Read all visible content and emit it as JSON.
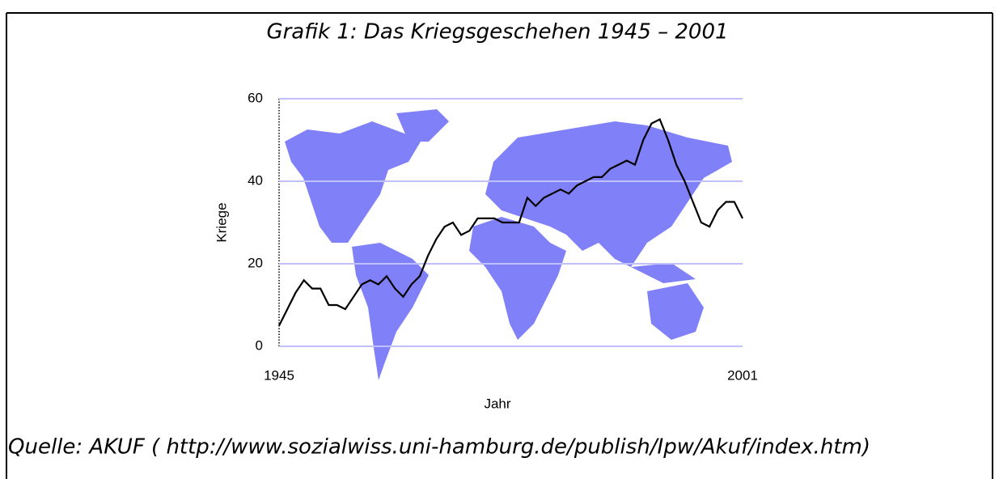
{
  "chart_data": {
    "type": "line",
    "title": "Grafik 1: Das Kriegsgeschehen 1945 – 2001",
    "y_label": "Kriege",
    "x_label": "Jahr",
    "source": "Quelle: AKUF ( http://www.sozialwiss.uni-hamburg.de/publish/Ipw/Akuf/index.htm)",
    "x": [
      1945,
      1946,
      1947,
      1948,
      1949,
      1950,
      1951,
      1952,
      1953,
      1954,
      1955,
      1956,
      1957,
      1958,
      1959,
      1960,
      1961,
      1962,
      1963,
      1964,
      1965,
      1966,
      1967,
      1968,
      1969,
      1970,
      1971,
      1972,
      1973,
      1974,
      1975,
      1976,
      1977,
      1978,
      1979,
      1980,
      1981,
      1982,
      1983,
      1984,
      1985,
      1986,
      1987,
      1988,
      1989,
      1990,
      1991,
      1992,
      1993,
      1994,
      1995,
      1996,
      1997,
      1998,
      1999,
      2000,
      2001
    ],
    "series": [
      {
        "name": "Kriege",
        "color": "#000000",
        "values": [
          5,
          9,
          13,
          16,
          14,
          14,
          10,
          10,
          9,
          12,
          15,
          16,
          15,
          17,
          14,
          12,
          15,
          17,
          22,
          26,
          29,
          30,
          27,
          28,
          31,
          31,
          31,
          30,
          30,
          30,
          36,
          34,
          36,
          37,
          38,
          37,
          39,
          40,
          41,
          41,
          43,
          44,
          45,
          44,
          50,
          54,
          55,
          50,
          44,
          40,
          35,
          30,
          29,
          33,
          35,
          35,
          31
        ]
      }
    ],
    "xlim": [
      1945,
      2001
    ],
    "xticks": [
      1945,
      2001
    ],
    "ylim": [
      0,
      60
    ],
    "yticks": [
      0,
      20,
      40,
      60
    ],
    "grid": true,
    "grid_color": "#c0c0ff"
  }
}
